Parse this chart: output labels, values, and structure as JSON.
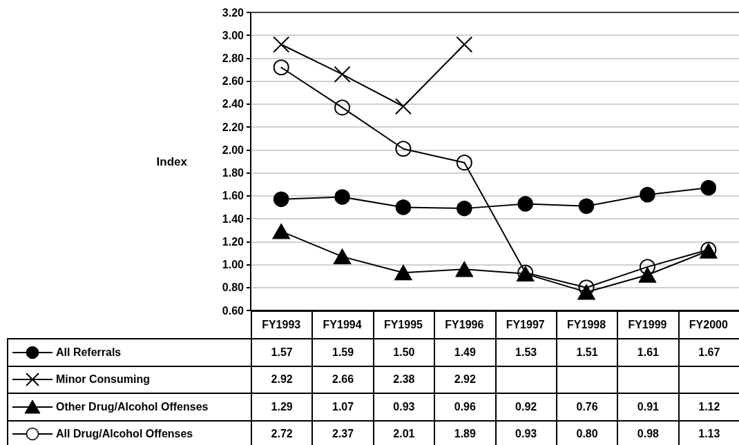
{
  "chart_data": {
    "type": "line",
    "ylabel": "Index",
    "categories": [
      "FY1993",
      "FY1994",
      "FY1995",
      "FY1996",
      "FY1997",
      "FY1998",
      "FY1999",
      "FY2000"
    ],
    "ylim": [
      0.6,
      3.2
    ],
    "yticks": [
      {
        "value": 0.6,
        "label": "0.60"
      },
      {
        "value": 0.8,
        "label": "0.80"
      },
      {
        "value": 1,
        "label": "1.00"
      },
      {
        "value": 1.2,
        "label": "1.20"
      },
      {
        "value": 1.4,
        "label": "1.40"
      },
      {
        "value": 1.6,
        "label": "1.60"
      },
      {
        "value": 1.8,
        "label": "1.80"
      },
      {
        "value": 2,
        "label": "2.00"
      },
      {
        "value": 2.2,
        "label": "2.20"
      },
      {
        "value": 2.4,
        "label": "2.40"
      },
      {
        "value": 2.6,
        "label": "2.60"
      },
      {
        "value": 2.8,
        "label": "2.80"
      },
      {
        "value": 3,
        "label": "3.00"
      },
      {
        "value": 3.2,
        "label": "3.20"
      }
    ],
    "grid": "y",
    "legend": "bottom",
    "line_style": "solid",
    "series": [
      {
        "name": "All Referrals",
        "color": "#000000",
        "marker": "circle",
        "values": [
          1.57,
          1.59,
          1.5,
          1.49,
          1.53,
          1.51,
          1.61,
          1.67
        ],
        "value_labels": [
          "1.57",
          "1.59",
          "1.50",
          "1.49",
          "1.53",
          "1.51",
          "1.61",
          "1.67"
        ]
      },
      {
        "name": "Minor Consuming",
        "color": "#000000",
        "marker": "cross",
        "values": [
          2.92,
          2.66,
          2.38,
          2.92,
          null,
          null,
          null,
          null
        ],
        "value_labels": [
          "2.92",
          "2.66",
          "2.38",
          "2.92",
          null,
          null,
          null,
          null
        ]
      },
      {
        "name": "Other Drug/Alcohol Offenses",
        "color": "#000000",
        "marker": "triangle",
        "values": [
          1.29,
          1.07,
          0.93,
          0.96,
          0.92,
          0.76,
          0.91,
          1.12
        ],
        "value_labels": [
          "1.29",
          "1.07",
          "0.93",
          "0.96",
          "0.92",
          "0.76",
          "0.91",
          "1.12"
        ]
      },
      {
        "name": "All Drug/Alcohol Offenses",
        "color": "#000000",
        "marker": "circle",
        "values": [
          2.72,
          2.37,
          2.01,
          1.89,
          0.93,
          0.8,
          0.98,
          1.13
        ],
        "value_labels": [
          "2.72",
          "2.37",
          "2.01",
          "1.89",
          "0.93",
          "0.80",
          "0.98",
          "1.13"
        ]
      }
    ]
  }
}
